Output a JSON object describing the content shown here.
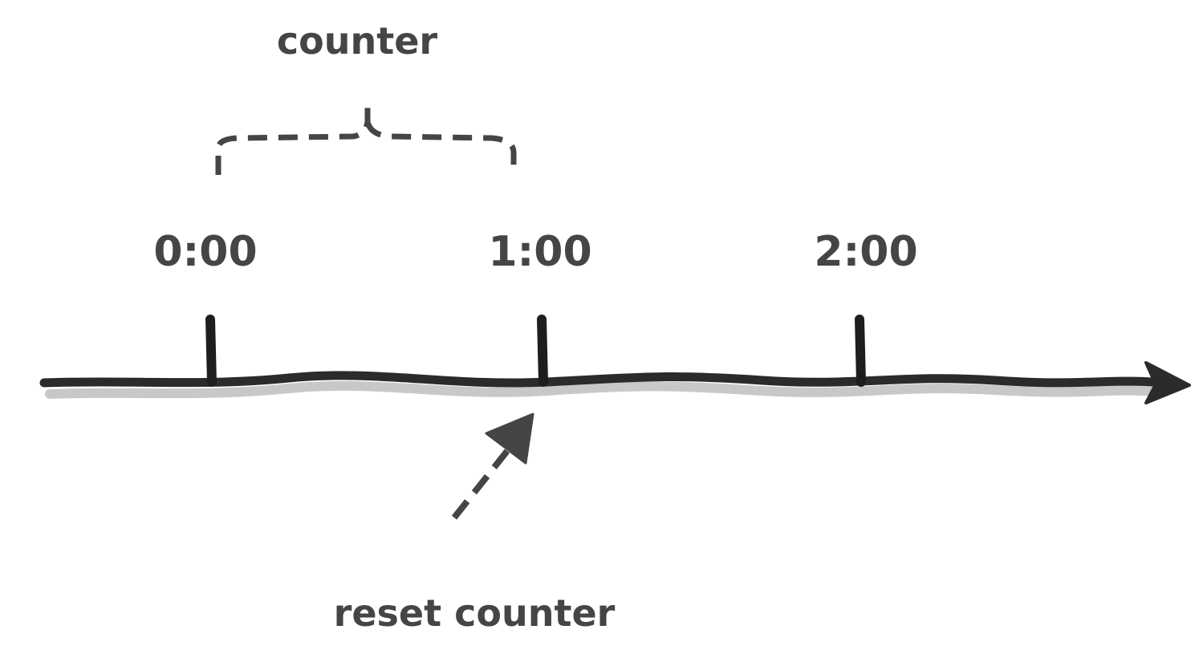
{
  "diagram": {
    "bracket_label": "counter",
    "timeline": {
      "ticks": [
        {
          "label": "0:00"
        },
        {
          "label": "1:00"
        },
        {
          "label": "2:00"
        }
      ]
    },
    "pointer_label": "reset counter",
    "colors": {
      "ink": "#2b2b2b",
      "text": "#454545",
      "shadow": "#c8c8c8"
    }
  }
}
